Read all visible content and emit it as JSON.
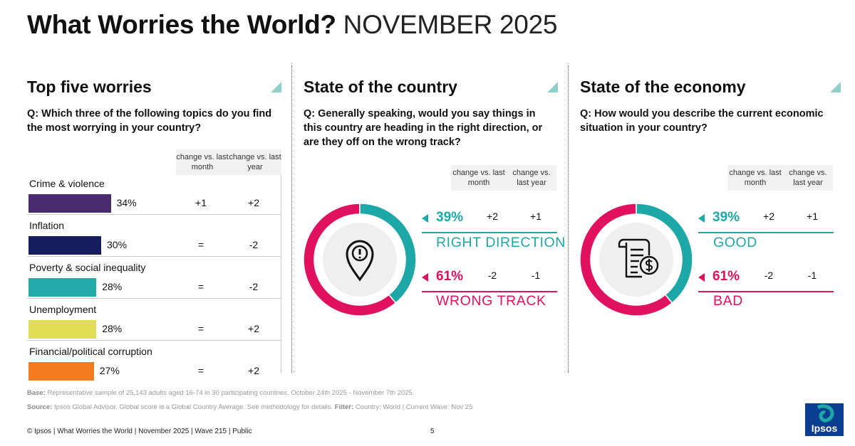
{
  "title": {
    "bold": "What Worries the World?",
    "light": "NOVEMBER 2025"
  },
  "change_headers": {
    "month": "change vs. last month",
    "year": "change vs. last year"
  },
  "colors": {
    "teal": "#1ea7a7",
    "pink": "#e0115f"
  },
  "worries": {
    "heading": "Top five worries",
    "question": "Q: Which three of the following topics do you find the most worrying in your country?",
    "items": [
      {
        "label": "Crime & violence",
        "pct": "34%",
        "value": 34,
        "month": "+1",
        "year": "+2",
        "color": "#4a2a6e"
      },
      {
        "label": "Inflation",
        "pct": "30%",
        "value": 30,
        "month": "=",
        "year": "-2",
        "color": "#151d5c"
      },
      {
        "label": "Poverty & social inequality",
        "pct": "28%",
        "value": 28,
        "month": "=",
        "year": "-2",
        "color": "#22aaa8"
      },
      {
        "label": "Unemployment",
        "pct": "28%",
        "value": 28,
        "month": "=",
        "year": "+2",
        "color": "#e1dd55"
      },
      {
        "label": "Financial/political corruption",
        "pct": "27%",
        "value": 27,
        "month": "=",
        "year": "+2",
        "color": "#f47c20"
      }
    ]
  },
  "country": {
    "heading": "State of the country",
    "question": "Q: Generally speaking, would you say things in this country are heading in the right direction, or are they off on the wrong track?",
    "icon": "location-alert-icon",
    "results": [
      {
        "pct": "39%",
        "value": 39,
        "month": "+2",
        "year": "+1",
        "label": "RIGHT DIRECTION"
      },
      {
        "pct": "61%",
        "value": 61,
        "month": "-2",
        "year": "-1",
        "label": "WRONG TRACK"
      }
    ]
  },
  "economy": {
    "heading": "State of the economy",
    "question": "Q: How would you describe the current economic situation in your country?",
    "icon": "invoice-dollar-icon",
    "results": [
      {
        "pct": "39%",
        "value": 39,
        "month": "+2",
        "year": "+1",
        "label": "GOOD"
      },
      {
        "pct": "61%",
        "value": 61,
        "month": "-2",
        "year": "-1",
        "label": "BAD"
      }
    ]
  },
  "footnotes": {
    "base_label": "Base:",
    "base_text": "Representative sample of 25,143 adults aged 16-74 in 30 participating countries, October 24th 2025 - November 7th 2025.",
    "source_label": "Source:",
    "source_text": "Ipsos Global Advisor. Global score is a Global Country Average. See methodology for details.",
    "filter_label": "Filter:",
    "filter_text": "Country: World | Current Wave: Nov 25"
  },
  "footer": {
    "left": "© Ipsos | What Worries the World | November 2025 | Wave 215 | Public",
    "page": "5"
  },
  "logo_text": "Ipsos",
  "chart_data": [
    {
      "type": "bar",
      "title": "Top five worries",
      "categories": [
        "Crime & violence",
        "Inflation",
        "Poverty & social inequality",
        "Unemployment",
        "Financial/political corruption"
      ],
      "values": [
        34,
        30,
        28,
        28,
        27
      ],
      "change_vs_last_month": [
        "+1",
        "=",
        "=",
        "=",
        "="
      ],
      "change_vs_last_year": [
        "+2",
        "-2",
        "-2",
        "+2",
        "+2"
      ]
    },
    {
      "type": "pie",
      "title": "State of the country",
      "categories": [
        "RIGHT DIRECTION",
        "WRONG TRACK"
      ],
      "values": [
        39,
        61
      ]
    },
    {
      "type": "pie",
      "title": "State of the economy",
      "categories": [
        "GOOD",
        "BAD"
      ],
      "values": [
        39,
        61
      ]
    }
  ]
}
